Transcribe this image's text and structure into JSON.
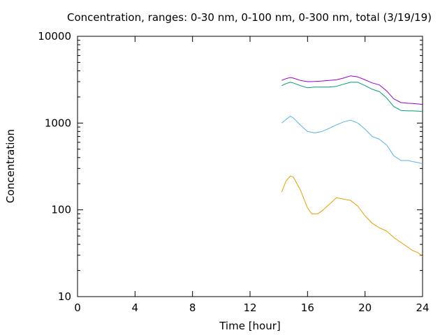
{
  "chart_data": {
    "type": "line",
    "title": "Concentration, ranges: 0-30 nm, 0-100 nm, 0-300 nm, total (3/19/19)",
    "xlabel": "Time [hour]",
    "ylabel": "Concentration",
    "xlim": [
      0,
      24
    ],
    "ylim": [
      10,
      10000
    ],
    "yscale": "log",
    "grid": false,
    "legend": "none",
    "x_ticks": [
      "0",
      "4",
      "8",
      "12",
      "16",
      "20",
      "24"
    ],
    "y_ticks": [
      "10",
      "100",
      "1000",
      "10000"
    ],
    "series": [
      {
        "color": "#e69f00",
        "x": [
          14.2,
          14.5,
          14.8,
          15.0,
          15.5,
          16.0,
          16.3,
          16.7,
          17.0,
          17.5,
          18.0,
          18.5,
          19.0,
          19.5,
          20.0,
          20.5,
          21.0,
          21.5,
          22.0,
          22.5,
          23.0,
          23.3,
          23.7,
          24.0
        ],
        "y": [
          160,
          215,
          245,
          240,
          170,
          105,
          90,
          90,
          97,
          115,
          138,
          133,
          128,
          110,
          85,
          70,
          62,
          57,
          48,
          42,
          37,
          34,
          32,
          29
        ]
      },
      {
        "color": "#56b4e9",
        "x": [
          14.2,
          14.5,
          14.8,
          15.0,
          15.5,
          16.0,
          16.5,
          17.0,
          17.5,
          18.0,
          18.5,
          19.0,
          19.5,
          20.0,
          20.5,
          21.0,
          21.5,
          22.0,
          22.5,
          23.0,
          23.3,
          23.7,
          24.0
        ],
        "y": [
          1000,
          1100,
          1200,
          1150,
          950,
          800,
          770,
          800,
          870,
          950,
          1030,
          1080,
          1000,
          850,
          700,
          650,
          560,
          420,
          370,
          370,
          360,
          350,
          340
        ]
      },
      {
        "color": "#009e73",
        "x": [
          14.2,
          14.5,
          14.8,
          15.0,
          15.5,
          16.0,
          16.5,
          17.0,
          17.5,
          18.0,
          18.5,
          19.0,
          19.5,
          20.0,
          20.5,
          21.0,
          21.5,
          22.0,
          22.5,
          23.0,
          23.3,
          23.7,
          24.0
        ],
        "y": [
          2700,
          2850,
          2950,
          2900,
          2700,
          2550,
          2600,
          2600,
          2600,
          2650,
          2800,
          2950,
          2950,
          2700,
          2450,
          2300,
          1950,
          1550,
          1400,
          1380,
          1380,
          1370,
          1360
        ]
      },
      {
        "color": "#9400d3",
        "x": [
          14.2,
          14.5,
          14.8,
          15.0,
          15.5,
          16.0,
          16.5,
          17.0,
          17.5,
          18.0,
          18.5,
          19.0,
          19.5,
          20.0,
          20.5,
          21.0,
          21.5,
          22.0,
          22.5,
          23.0,
          23.3,
          23.7,
          24.0
        ],
        "y": [
          3100,
          3250,
          3350,
          3300,
          3100,
          3000,
          3020,
          3050,
          3100,
          3150,
          3300,
          3500,
          3400,
          3150,
          2900,
          2750,
          2350,
          1900,
          1720,
          1690,
          1680,
          1660,
          1640
        ]
      }
    ]
  }
}
